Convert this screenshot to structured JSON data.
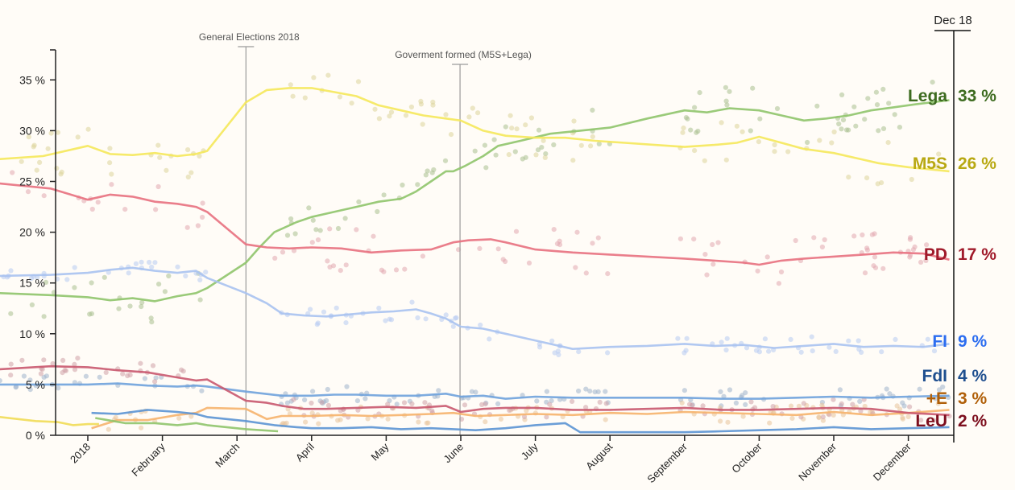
{
  "chart_data": {
    "type": "line",
    "title": "",
    "xlabel": "",
    "ylabel": "",
    "ylim": [
      0,
      38
    ],
    "xlim_months": [
      -1.18,
      11.55
    ],
    "y_ticks": [
      {
        "value": 0,
        "label": "0 %"
      },
      {
        "value": 5,
        "label": "5 %"
      },
      {
        "value": 10,
        "label": "10 %"
      },
      {
        "value": 15,
        "label": "15 %"
      },
      {
        "value": 20,
        "label": "20 %"
      },
      {
        "value": 25,
        "label": "25 %"
      },
      {
        "value": 30,
        "label": "30 %"
      },
      {
        "value": 35,
        "label": "35 %"
      }
    ],
    "x_ticks": [
      {
        "value": 0,
        "label": "2018"
      },
      {
        "value": 1,
        "label": "February"
      },
      {
        "value": 2,
        "label": "March"
      },
      {
        "value": 3,
        "label": "April"
      },
      {
        "value": 4,
        "label": "May"
      },
      {
        "value": 5,
        "label": "June"
      },
      {
        "value": 6,
        "label": "July"
      },
      {
        "value": 7,
        "label": "August"
      },
      {
        "value": 8,
        "label": "September"
      },
      {
        "value": 9,
        "label": "October"
      },
      {
        "value": 10,
        "label": "November"
      },
      {
        "value": 11,
        "label": "December"
      }
    ],
    "current_date_label": "Dec 18",
    "annotations": [
      {
        "x": 2.12,
        "label": "General Elections 2018"
      },
      {
        "x": 4.99,
        "label": "Goverment formed (M5S+Lega)"
      }
    ],
    "series": [
      {
        "name": "Lega",
        "final_label": "33 %",
        "color": "#8fc46a",
        "label_color": "#3d6b1f",
        "dot_color": "#a9c08f",
        "x": [
          -1.18,
          -0.5,
          0.0,
          0.3,
          0.6,
          0.9,
          1.2,
          1.45,
          1.6,
          2.12,
          2.3,
          2.5,
          2.8,
          3.0,
          3.3,
          3.6,
          3.9,
          4.2,
          4.4,
          4.6,
          4.8,
          4.9,
          5.05,
          5.3,
          5.5,
          5.8,
          6.2,
          6.6,
          7.0,
          7.5,
          8.0,
          8.3,
          8.6,
          9.0,
          9.3,
          9.6,
          9.9,
          10.2,
          10.5,
          10.8,
          11.1,
          11.55
        ],
        "values": [
          14.0,
          13.8,
          13.6,
          13.3,
          13.5,
          13.2,
          13.7,
          14.0,
          14.5,
          17.0,
          18.5,
          20.0,
          21.0,
          21.5,
          22.0,
          22.5,
          23.0,
          23.3,
          24.0,
          25.0,
          26.0,
          26.0,
          26.5,
          27.5,
          28.5,
          29.0,
          29.7,
          30.0,
          30.3,
          31.2,
          32.0,
          31.8,
          32.2,
          32.0,
          31.5,
          31.0,
          31.2,
          31.5,
          32.0,
          32.3,
          32.6,
          33.0
        ]
      },
      {
        "name": "M5S",
        "final_label": "26 %",
        "color": "#f5e85a",
        "label_color": "#b8a812",
        "dot_color": "#ddd39a",
        "x": [
          -1.18,
          -0.6,
          0.0,
          0.3,
          0.6,
          0.9,
          1.2,
          1.45,
          1.6,
          2.12,
          2.4,
          2.7,
          3.0,
          3.3,
          3.6,
          3.9,
          4.2,
          4.5,
          4.8,
          5.0,
          5.3,
          5.6,
          6.0,
          6.4,
          6.8,
          7.2,
          7.6,
          8.0,
          8.4,
          8.7,
          9.0,
          9.3,
          9.6,
          10.0,
          10.3,
          10.6,
          11.0,
          11.55
        ],
        "values": [
          27.2,
          27.5,
          28.5,
          27.7,
          27.6,
          27.8,
          27.5,
          27.7,
          28.0,
          32.8,
          34.0,
          34.2,
          34.2,
          33.8,
          33.4,
          32.5,
          32.0,
          31.5,
          31.2,
          31.0,
          30.0,
          29.5,
          29.3,
          29.3,
          29.0,
          28.8,
          28.6,
          28.4,
          28.6,
          28.8,
          29.4,
          28.8,
          28.2,
          27.8,
          27.3,
          26.8,
          26.4,
          26.0
        ]
      },
      {
        "name": "PD",
        "final_label": "17 %",
        "color": "#e8707e",
        "label_color": "#a01a2a",
        "dot_color": "#e2a7b0",
        "x": [
          -1.18,
          -0.5,
          0.0,
          0.3,
          0.6,
          0.9,
          1.2,
          1.45,
          1.6,
          2.12,
          2.4,
          2.7,
          3.0,
          3.4,
          3.8,
          4.2,
          4.6,
          4.9,
          5.1,
          5.4,
          5.6,
          6.0,
          6.5,
          7.0,
          7.5,
          8.0,
          8.4,
          8.8,
          9.0,
          9.3,
          9.6,
          10.0,
          10.4,
          10.8,
          11.2,
          11.55
        ],
        "values": [
          24.8,
          24.3,
          23.2,
          23.7,
          23.5,
          23.0,
          22.8,
          22.5,
          22.0,
          18.8,
          18.5,
          18.4,
          18.5,
          18.4,
          18.0,
          18.2,
          18.3,
          19.0,
          19.2,
          19.3,
          19.0,
          18.3,
          18.0,
          17.8,
          17.6,
          17.4,
          17.2,
          17.0,
          16.8,
          17.2,
          17.4,
          17.6,
          17.8,
          18.0,
          17.9,
          17.3
        ]
      },
      {
        "name": "FI",
        "final_label": "9 %",
        "color": "#a9c2f0",
        "label_color": "#2c6df0",
        "dot_color": "#b7cbf2",
        "x": [
          -1.18,
          -0.5,
          0.0,
          0.3,
          0.6,
          0.9,
          1.2,
          1.45,
          1.6,
          2.12,
          2.4,
          2.6,
          2.9,
          3.2,
          3.5,
          3.8,
          4.1,
          4.4,
          4.6,
          4.8,
          5.0,
          5.3,
          5.6,
          5.9,
          6.2,
          6.5,
          7.0,
          7.5,
          8.0,
          8.4,
          8.8,
          9.2,
          9.6,
          10.0,
          10.4,
          10.8,
          11.2,
          11.55
        ],
        "values": [
          15.7,
          15.8,
          16.0,
          16.3,
          16.5,
          16.2,
          16.0,
          16.2,
          15.5,
          14.0,
          13.0,
          12.0,
          11.8,
          11.7,
          11.9,
          12.1,
          12.2,
          12.4,
          12.0,
          11.5,
          10.7,
          10.5,
          10.0,
          9.5,
          9.0,
          8.5,
          8.7,
          8.8,
          9.0,
          8.8,
          8.9,
          8.6,
          8.8,
          9.0,
          8.7,
          8.8,
          8.7,
          9.0
        ]
      },
      {
        "name": "FdI",
        "final_label": "4 %",
        "color": "#6fa2dc",
        "label_color": "#1f4f8f",
        "dot_color": "#9fb3cc",
        "x": [
          -1.18,
          -0.5,
          0.0,
          0.4,
          0.8,
          1.2,
          1.45,
          1.6,
          2.12,
          2.6,
          3.0,
          3.3,
          3.6,
          4.0,
          4.4,
          4.8,
          5.0,
          5.3,
          5.6,
          6.0,
          6.5,
          7.0,
          7.5,
          8.0,
          8.5,
          9.0,
          9.5,
          10.0,
          10.5,
          11.0,
          11.55
        ],
        "values": [
          5.0,
          5.0,
          5.0,
          5.1,
          4.9,
          4.8,
          4.9,
          4.8,
          4.3,
          3.9,
          3.9,
          4.0,
          4.0,
          3.9,
          3.9,
          4.1,
          3.8,
          3.9,
          3.6,
          3.8,
          3.7,
          3.7,
          3.7,
          3.7,
          3.6,
          3.6,
          3.7,
          3.8,
          3.7,
          3.8,
          3.9
        ]
      },
      {
        "name": "+E",
        "final_label": "3 %",
        "color": "#f6b26b",
        "label_color": "#b05f08",
        "dot_color": "#e8c39a",
        "x": [
          0.05,
          0.4,
          0.8,
          1.2,
          1.45,
          1.6,
          2.12,
          2.4,
          2.6,
          3.0,
          3.4,
          3.8,
          4.2,
          4.6,
          4.9,
          5.2,
          5.6,
          6.0,
          6.5,
          7.0,
          7.5,
          8.0,
          8.5,
          9.0,
          9.5,
          10.0,
          10.5,
          11.0,
          11.55
        ],
        "values": [
          0.7,
          1.5,
          1.5,
          2.0,
          2.2,
          2.7,
          2.6,
          1.6,
          1.9,
          1.9,
          2.0,
          1.9,
          2.0,
          2.1,
          2.2,
          1.9,
          2.0,
          2.1,
          2.0,
          2.2,
          2.1,
          2.3,
          2.2,
          2.1,
          2.0,
          2.3,
          2.0,
          2.2,
          2.5
        ]
      },
      {
        "name": "LeU",
        "final_label": "2 %",
        "color": "#c9586e",
        "label_color": "#7d0f1e",
        "dot_color": "#d0a0a8",
        "x": [
          -1.18,
          -0.5,
          0.0,
          0.4,
          0.8,
          1.2,
          1.45,
          1.6,
          2.12,
          2.4,
          2.6,
          2.9,
          3.2,
          3.6,
          4.0,
          4.4,
          4.8,
          5.0,
          5.3,
          5.6,
          6.0,
          6.5,
          7.0,
          7.5,
          8.0,
          8.5,
          9.0,
          9.5,
          10.0,
          10.5,
          11.0,
          11.55
        ],
        "values": [
          6.5,
          6.8,
          6.7,
          6.4,
          6.2,
          5.7,
          5.4,
          5.5,
          3.4,
          3.2,
          2.9,
          2.6,
          2.6,
          2.7,
          2.8,
          2.7,
          2.9,
          2.3,
          2.6,
          2.7,
          2.7,
          2.5,
          2.5,
          2.6,
          2.7,
          2.5,
          2.5,
          2.6,
          2.7,
          2.6,
          2.2,
          2.0
        ]
      },
      {
        "name": "Lega-early",
        "final_label": "",
        "color": "#8fc46a",
        "label_color": "",
        "dot_color": "",
        "x": [
          0.1,
          0.5,
          0.9,
          1.2,
          1.45,
          1.6,
          2.12,
          2.55
        ],
        "values": [
          1.7,
          1.2,
          1.2,
          1.0,
          1.2,
          1.0,
          0.6,
          0.4
        ]
      },
      {
        "name": "FdI-low",
        "final_label": "",
        "color": "#5b93d3",
        "label_color": "",
        "dot_color": "",
        "x": [
          0.05,
          0.4,
          0.8,
          1.2,
          1.45,
          1.6,
          2.12,
          2.5,
          2.8,
          3.0,
          3.4,
          3.8,
          4.2,
          4.6,
          4.9,
          5.2,
          5.6,
          6.0,
          6.4,
          6.6,
          7.0,
          7.5,
          8.0,
          8.5,
          9.0,
          9.5,
          10.0,
          10.5,
          11.0,
          11.55
        ],
        "values": [
          2.2,
          2.1,
          2.5,
          2.3,
          2.1,
          1.8,
          1.4,
          1.0,
          0.8,
          0.7,
          0.7,
          0.8,
          0.6,
          0.7,
          0.6,
          0.5,
          0.7,
          1.0,
          1.2,
          0.3,
          0.3,
          0.3,
          0.3,
          0.4,
          0.5,
          0.6,
          0.8,
          0.6,
          0.7,
          0.8
        ]
      },
      {
        "name": "M5S-low",
        "final_label": "",
        "color": "#f1dc55",
        "label_color": "",
        "dot_color": "",
        "x": [
          -1.18,
          -0.7,
          -0.4,
          -0.2,
          0.0,
          0.15
        ],
        "values": [
          1.8,
          1.4,
          1.3,
          1.0,
          1.1,
          1.1
        ]
      }
    ]
  }
}
